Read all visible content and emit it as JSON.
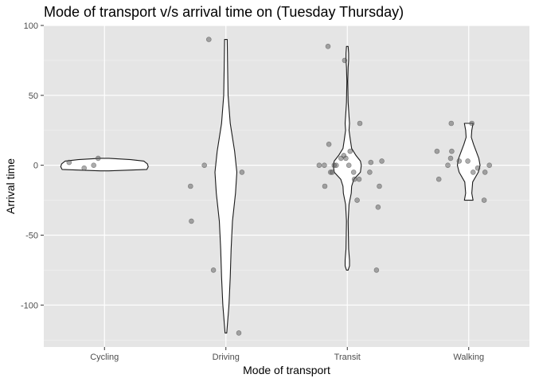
{
  "chart_data": {
    "type": "violin",
    "title": "Mode of transport v/s arrival time on (Tuesday Thursday)",
    "xlabel": "Mode of transport",
    "ylabel": "Arrival time",
    "categories": [
      "Cycling",
      "Driving",
      "Transit",
      "Walking"
    ],
    "ylim": [
      -130,
      100
    ],
    "yticks": [
      -100,
      -50,
      0,
      50,
      100
    ],
    "ytick_labels": [
      "-100",
      "-50",
      "0",
      "50",
      "100"
    ],
    "grid": true,
    "panel_background": "#e5e5e5",
    "point_color": "#5a5a5a",
    "violin_fill": "#ffffff",
    "violin_stroke": "#1a1a1a",
    "points": [
      {
        "category": "Cycling",
        "values": [
          5,
          2,
          0,
          -2
        ]
      },
      {
        "category": "Driving",
        "values": [
          90,
          0,
          -5,
          -15,
          -40,
          -75,
          -120
        ]
      },
      {
        "category": "Transit",
        "values": [
          85,
          75,
          30,
          15,
          10,
          5,
          5,
          3,
          0,
          0,
          0,
          -5,
          -5,
          -5,
          -5,
          -10,
          -10,
          -15,
          -15,
          -25,
          -30,
          0,
          0,
          -75,
          2,
          7
        ]
      },
      {
        "category": "Walking",
        "values": [
          30,
          30,
          10,
          10,
          5,
          3,
          3,
          0,
          0,
          -2,
          -5,
          -5,
          -10,
          -25
        ]
      }
    ],
    "violins": [
      {
        "category": "Cycling",
        "profile": [
          [
            -4,
            0.1
          ],
          [
            -3,
            0.97
          ],
          [
            -1,
            1.0
          ],
          [
            1,
            0.98
          ],
          [
            3,
            0.9
          ],
          [
            4,
            0.6
          ],
          [
            5,
            0.1
          ]
        ]
      },
      {
        "category": "Driving",
        "profile": [
          [
            -120,
            0.02
          ],
          [
            -100,
            0.07
          ],
          [
            -80,
            0.1
          ],
          [
            -60,
            0.12
          ],
          [
            -40,
            0.15
          ],
          [
            -20,
            0.22
          ],
          [
            -5,
            0.25
          ],
          [
            10,
            0.2
          ],
          [
            30,
            0.1
          ],
          [
            50,
            0.05
          ],
          [
            70,
            0.04
          ],
          [
            90,
            0.03
          ]
        ]
      },
      {
        "category": "Transit",
        "profile": [
          [
            -75,
            0.02
          ],
          [
            -72,
            0.05
          ],
          [
            -68,
            0.05
          ],
          [
            -60,
            0.03
          ],
          [
            -40,
            0.02
          ],
          [
            -28,
            0.04
          ],
          [
            -20,
            0.09
          ],
          [
            -15,
            0.1
          ],
          [
            -10,
            0.15
          ],
          [
            -5,
            0.3
          ],
          [
            0,
            0.32
          ],
          [
            3,
            0.3
          ],
          [
            7,
            0.2
          ],
          [
            12,
            0.1
          ],
          [
            18,
            0.07
          ],
          [
            25,
            0.04
          ],
          [
            30,
            0.05
          ],
          [
            35,
            0.04
          ],
          [
            45,
            0.02
          ],
          [
            60,
            0.01
          ],
          [
            70,
            0.02
          ],
          [
            75,
            0.03
          ],
          [
            80,
            0.03
          ],
          [
            85,
            0.02
          ]
        ]
      },
      {
        "category": "Walking",
        "profile": [
          [
            -25,
            0.1
          ],
          [
            -20,
            0.07
          ],
          [
            -12,
            0.09
          ],
          [
            -5,
            0.22
          ],
          [
            0,
            0.26
          ],
          [
            5,
            0.23
          ],
          [
            10,
            0.17
          ],
          [
            15,
            0.11
          ],
          [
            20,
            0.06
          ],
          [
            25,
            0.07
          ],
          [
            30,
            0.1
          ]
        ]
      }
    ]
  }
}
